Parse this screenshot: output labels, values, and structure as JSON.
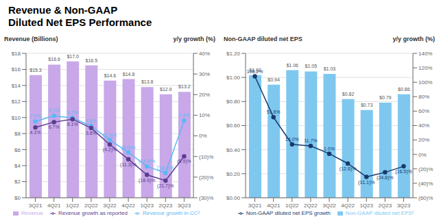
{
  "chart_data": [
    {
      "type": "bar",
      "title": "Revenue & Non-GAAP\nDiluted Net EPS Performance",
      "ylabel": "Revenue (Billions)",
      "y2label": "y/y growth (%)",
      "categories": [
        "3Q21",
        "4Q21",
        "1Q22",
        "2Q22",
        "3Q22",
        "4Q22",
        "1Q23",
        "2Q23",
        "3Q23"
      ],
      "ylim": [
        0,
        18
      ],
      "yticks": [
        {
          "value": 0,
          "label": "$0"
        },
        {
          "value": 2,
          "label": "$2"
        },
        {
          "value": 4,
          "label": "$4"
        },
        {
          "value": 6,
          "label": "$6"
        },
        {
          "value": 8,
          "label": "$8"
        },
        {
          "value": 10,
          "label": "$10"
        },
        {
          "value": 12,
          "label": "$12"
        },
        {
          "value": 14,
          "label": "$14"
        },
        {
          "value": 16,
          "label": "$16"
        },
        {
          "value": 18,
          "label": "$18"
        }
      ],
      "y2lim": [
        -30,
        40
      ],
      "y2ticks": [
        {
          "value": -30,
          "label": "(30)%"
        },
        {
          "value": -20,
          "label": "(20)%"
        },
        {
          "value": -10,
          "label": "(10)%"
        },
        {
          "value": 0,
          "label": "0%"
        },
        {
          "value": 10,
          "label": "10%"
        },
        {
          "value": 20,
          "label": "20%"
        },
        {
          "value": 30,
          "label": "30%"
        },
        {
          "value": 40,
          "label": "40%"
        }
      ],
      "grid": true,
      "legend": "bottom",
      "series": [
        {
          "name": "Revenue",
          "type": "bar",
          "color": "#c8a8e8",
          "values": [
            15.3,
            16.6,
            17.0,
            16.5,
            14.6,
            14.8,
            13.8,
            12.9,
            13.2
          ],
          "data_labels": true,
          "value_labels": [
            "$15.3",
            "$16.6",
            "$17.0",
            "$16.5",
            "$14.6",
            "$14.8",
            "$13.8",
            "$12.9",
            "$13.2"
          ]
        },
        {
          "name": "Revenue growth in CC²",
          "type": "line",
          "axis": "y2",
          "color": "#5bb8f5",
          "marker": "circle",
          "values": [
            7.0,
            9.7,
            8.7,
            4.8,
            -2.0,
            -8.0,
            -14.8,
            -18.0,
            7.4
          ],
          "data_labels": true,
          "value_labels": [
            "7.0%",
            "9.7%",
            "8.7%",
            "4.8%",
            "(2.0)%",
            "(8.0)%",
            "(14.8)%",
            "(18.0)%",
            "7.4%"
          ]
        },
        {
          "name": "Revenue growth as reported",
          "type": "line",
          "axis": "y2",
          "color": "#5b3d8f",
          "marker": "circle",
          "values": [
            4.1,
            6.7,
            8.1,
            3.8,
            -4.2,
            -11.3,
            -18.9,
            -21.7,
            -9.9
          ],
          "data_labels": true,
          "value_labels": [
            "4.1%",
            "6.7%",
            "8.1%",
            "3.8%",
            "(4.2)%",
            "(11.3)%",
            "(18.9)%",
            "(21.7)%",
            "(9.9)%"
          ]
        }
      ]
    },
    {
      "type": "bar",
      "ylabel": "Non-GAAP diluted net EPS",
      "y2label": "y/y growth (%)",
      "categories": [
        "3Q21",
        "4Q21",
        "1Q22",
        "2Q22",
        "3Q22",
        "4Q22",
        "1Q23",
        "2Q23",
        "3Q23"
      ],
      "ylim": [
        0,
        1.2
      ],
      "yticks": [
        {
          "value": 0.0,
          "label": "$0.00"
        },
        {
          "value": 0.2,
          "label": "$0.20"
        },
        {
          "value": 0.4,
          "label": "$0.40"
        },
        {
          "value": 0.6,
          "label": "$0.60"
        },
        {
          "value": 0.8,
          "label": "$0.80"
        },
        {
          "value": 1.0,
          "label": "$1.00"
        },
        {
          "value": 1.2,
          "label": "$1.20"
        }
      ],
      "y2lim": [
        -60,
        140
      ],
      "y2ticks": [
        {
          "value": -60,
          "label": "(60)%"
        },
        {
          "value": -40,
          "label": "(40)%"
        },
        {
          "value": -20,
          "label": "(20)%"
        },
        {
          "value": 0,
          "label": "0%"
        },
        {
          "value": 20,
          "label": "20%"
        },
        {
          "value": 40,
          "label": "40%"
        },
        {
          "value": 60,
          "label": "60%"
        },
        {
          "value": 80,
          "label": "80%"
        },
        {
          "value": 100,
          "label": "100%"
        },
        {
          "value": 120,
          "label": "120%"
        },
        {
          "value": 140,
          "label": "140%"
        }
      ],
      "grid": true,
      "legend": "bottom",
      "series": [
        {
          "name": "Non-GAAP diluted net EPS²",
          "type": "bar",
          "color": "#7ec8f0",
          "values": [
            1.02,
            0.94,
            1.06,
            1.05,
            1.03,
            0.82,
            0.73,
            0.79,
            0.86
          ],
          "data_labels": true,
          "value_labels": [
            "$1.02",
            "$0.94",
            "$1.06",
            "$1.05",
            "$1.03",
            "$0.82",
            "$0.73",
            "$0.79",
            "$0.86"
          ]
        },
        {
          "name": "Non-GAAP diluted net EPS growth",
          "type": "line",
          "axis": "y2",
          "color": "#1a3a6b",
          "marker": "circle",
          "values": [
            108.2,
            51.6,
            14.0,
            11.7,
            1.0,
            -12.6,
            -31.1,
            -24.8,
            -16.5
          ],
          "data_labels": true,
          "value_labels": [
            "108.2%",
            "51.6%",
            "14.0%",
            "11.7%",
            "1.0%",
            "(12.6)%",
            "(31.1)%",
            "(24.8)%",
            "(16.5)%"
          ]
        }
      ]
    }
  ]
}
